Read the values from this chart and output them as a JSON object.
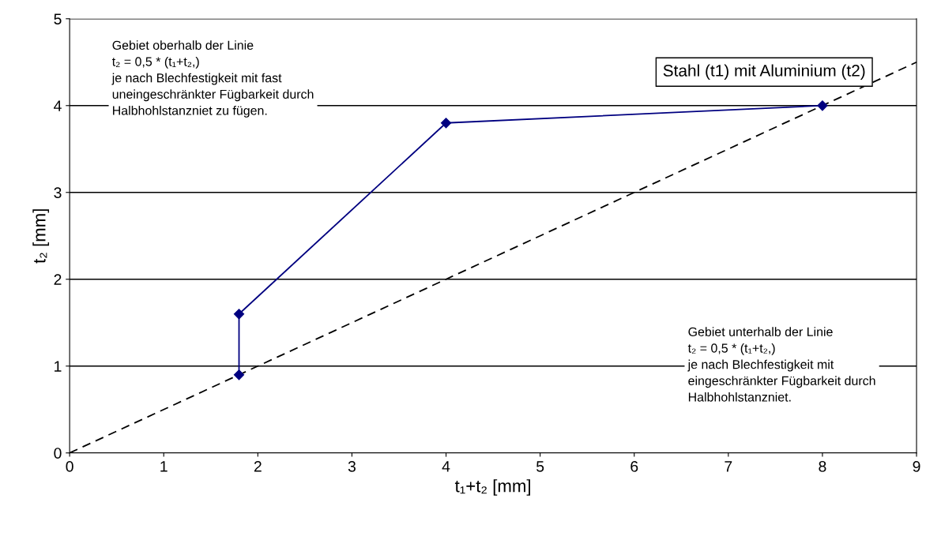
{
  "chart_data": {
    "type": "line",
    "xlabel": "t₁+t₂ [mm]",
    "ylabel": "t₂ [mm]",
    "xlim": [
      0,
      9
    ],
    "xticks": [
      0,
      1,
      2,
      3,
      4,
      5,
      6,
      7,
      8,
      9
    ],
    "ylim": [
      0,
      5
    ],
    "yticks": [
      0,
      1,
      2,
      3,
      4,
      5
    ],
    "grid": "y",
    "series": [
      {
        "color": "#000000",
        "x": [
          0,
          9
        ],
        "values": [
          0,
          4.5
        ],
        "marker": "none",
        "line_style": "dashed"
      },
      {
        "color": "#000080",
        "x": [
          1.8,
          1.8,
          4,
          8
        ],
        "values": [
          0.9,
          1.6,
          3.8,
          4
        ],
        "marker": "diamond",
        "line_style": "solid"
      }
    ],
    "annotations": [
      "Stahl (t1) mit Aluminium (t2)",
      "Gebiet oberhalb der Linie\nt₂ = 0,5 * (t₁+t₂,)\nje nach Blechfestigkeit mit fast\nuneingeschränkter Fügbarkeit durch\nHalbhohlstanzniet zu fügen.",
      "Gebiet unterhalb der Linie\nt₂ = 0,5 * (t₁+t₂,)\nje nach Blechfestigkeit mit\neingeschränkter Fügbarkeit durch\nHalbhohlstanzniet."
    ]
  }
}
